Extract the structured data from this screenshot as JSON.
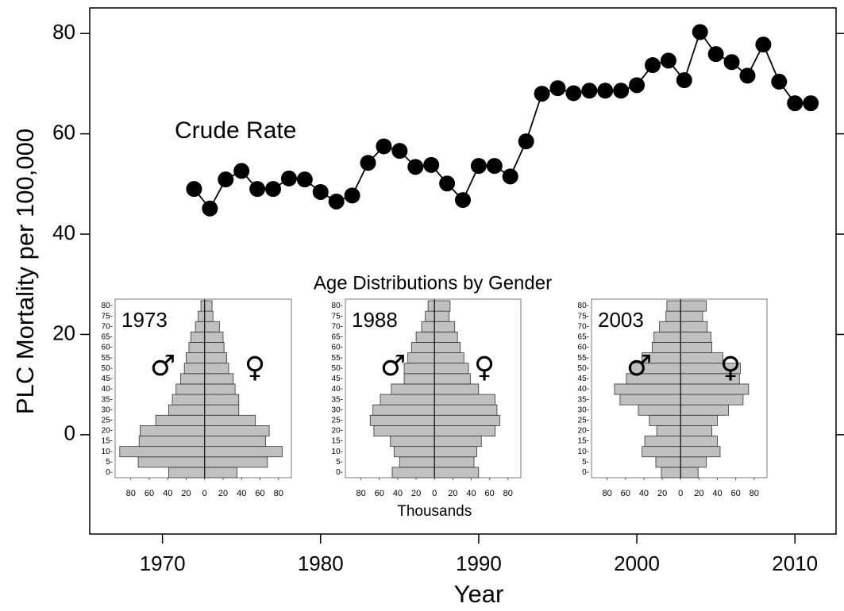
{
  "chart_data": [
    {
      "type": "line",
      "xlabel": "Year",
      "ylabel": "PLC Mortality per 100,000",
      "annotation": "Crude Rate",
      "x": [
        1972,
        1973,
        1974,
        1975,
        1976,
        1977,
        1978,
        1979,
        1980,
        1981,
        1982,
        1983,
        1984,
        1985,
        1986,
        1987,
        1988,
        1989,
        1990,
        1991,
        1992,
        1993,
        1994,
        1995,
        1996,
        1997,
        1998,
        1999,
        2000,
        2001,
        2002,
        2003,
        2004,
        2005,
        2006,
        2007,
        2008,
        2009,
        2010,
        2011
      ],
      "values": [
        49.0,
        45.1,
        50.9,
        52.6,
        49.0,
        49.0,
        51.1,
        50.9,
        48.4,
        46.5,
        47.7,
        54.2,
        57.5,
        56.6,
        53.4,
        53.8,
        50.1,
        46.8,
        53.6,
        53.6,
        51.5,
        58.5,
        68.0,
        69.1,
        68.1,
        68.6,
        68.6,
        68.6,
        69.7,
        73.7,
        74.6,
        70.7,
        80.3,
        75.9,
        74.3,
        71.6,
        77.8,
        70.4,
        66.1,
        66.1
      ],
      "color": "#000000",
      "xlim": [
        1965.4,
        2012.6
      ],
      "ylim": [
        -19.8,
        85.1
      ],
      "xticks": [
        1970,
        1980,
        1990,
        2000,
        2010
      ],
      "yticks": [
        0,
        20,
        40,
        60,
        80
      ]
    },
    {
      "type": "pyramid",
      "title": "1973",
      "categories": [
        "0-",
        "5-",
        "10-",
        "15-",
        "20-",
        "25-",
        "30-",
        "35-",
        "40-",
        "45-",
        "50-",
        "55-",
        "60-",
        "65-",
        "70-",
        "75-",
        "80-"
      ],
      "series": [
        {
          "name": "♂",
          "color": "#c0c0c0",
          "values": [
            39,
            72,
            92,
            71,
            70,
            53,
            39,
            35,
            31,
            26,
            22,
            20,
            17,
            15,
            10,
            7,
            4
          ]
        },
        {
          "name": "♀",
          "color": "#c0c0c0",
          "values": [
            35,
            68,
            84,
            66,
            70,
            55,
            37,
            37,
            33,
            31,
            26,
            24,
            21,
            20,
            16,
            9,
            8
          ]
        }
      ],
      "xlim": [
        -97,
        94
      ],
      "xticks": [
        {
          "value": -80,
          "label": "80"
        },
        {
          "value": -60,
          "label": "60"
        },
        {
          "value": -40,
          "label": "40"
        },
        {
          "value": -20,
          "label": "20"
        },
        0,
        20,
        40,
        60,
        80
      ]
    },
    {
      "type": "pyramid",
      "title": "1988",
      "categories": [
        "0-",
        "5-",
        "10-",
        "15-",
        "20-",
        "25-",
        "30-",
        "35-",
        "40-",
        "45-",
        "50-",
        "55-",
        "60-",
        "65-",
        "70-",
        "75-",
        "80-"
      ],
      "series": [
        {
          "name": "♂",
          "color": "#c0c0c0",
          "values": [
            46,
            38,
            44,
            48,
            66,
            70,
            67,
            59,
            47,
            33,
            33,
            29,
            25,
            20,
            14,
            10,
            7
          ]
        },
        {
          "name": "♀",
          "color": "#c0c0c0",
          "values": [
            48,
            43,
            46,
            51,
            66,
            71,
            68,
            66,
            48,
            39,
            37,
            32,
            28,
            25,
            22,
            16,
            17
          ]
        }
      ],
      "xlim": [
        -97,
        94
      ],
      "xlabel": "Thousands",
      "xticks": [
        {
          "value": -80,
          "label": "80"
        },
        {
          "value": -60,
          "label": "60"
        },
        {
          "value": -40,
          "label": "40"
        },
        {
          "value": -20,
          "label": "20"
        },
        0,
        20,
        40,
        60,
        80
      ]
    },
    {
      "type": "pyramid",
      "title": "2003",
      "categories": [
        "0-",
        "5-",
        "10-",
        "15-",
        "20-",
        "25-",
        "30-",
        "35-",
        "40-",
        "45-",
        "50-",
        "55-",
        "60-",
        "65-",
        "70-",
        "75-",
        "80-"
      ],
      "series": [
        {
          "name": "♂",
          "color": "#c0c0c0",
          "values": [
            21,
            27,
            42,
            39,
            26,
            34,
            46,
            66,
            72,
            59,
            54,
            42,
            31,
            29,
            23,
            16,
            15
          ]
        },
        {
          "name": "♀",
          "color": "#c0c0c0",
          "values": [
            19,
            28,
            43,
            40,
            34,
            40,
            52,
            68,
            74,
            64,
            65,
            46,
            34,
            33,
            29,
            24,
            28
          ]
        }
      ],
      "xlim": [
        -97,
        94
      ],
      "xticks": [
        {
          "value": -80,
          "label": "80"
        },
        {
          "value": -60,
          "label": "60"
        },
        {
          "value": -40,
          "label": "40"
        },
        {
          "value": -20,
          "label": "20"
        },
        0,
        20,
        40,
        60,
        80
      ]
    }
  ],
  "inset_group": {
    "title": "Age Distributions by Gender"
  }
}
